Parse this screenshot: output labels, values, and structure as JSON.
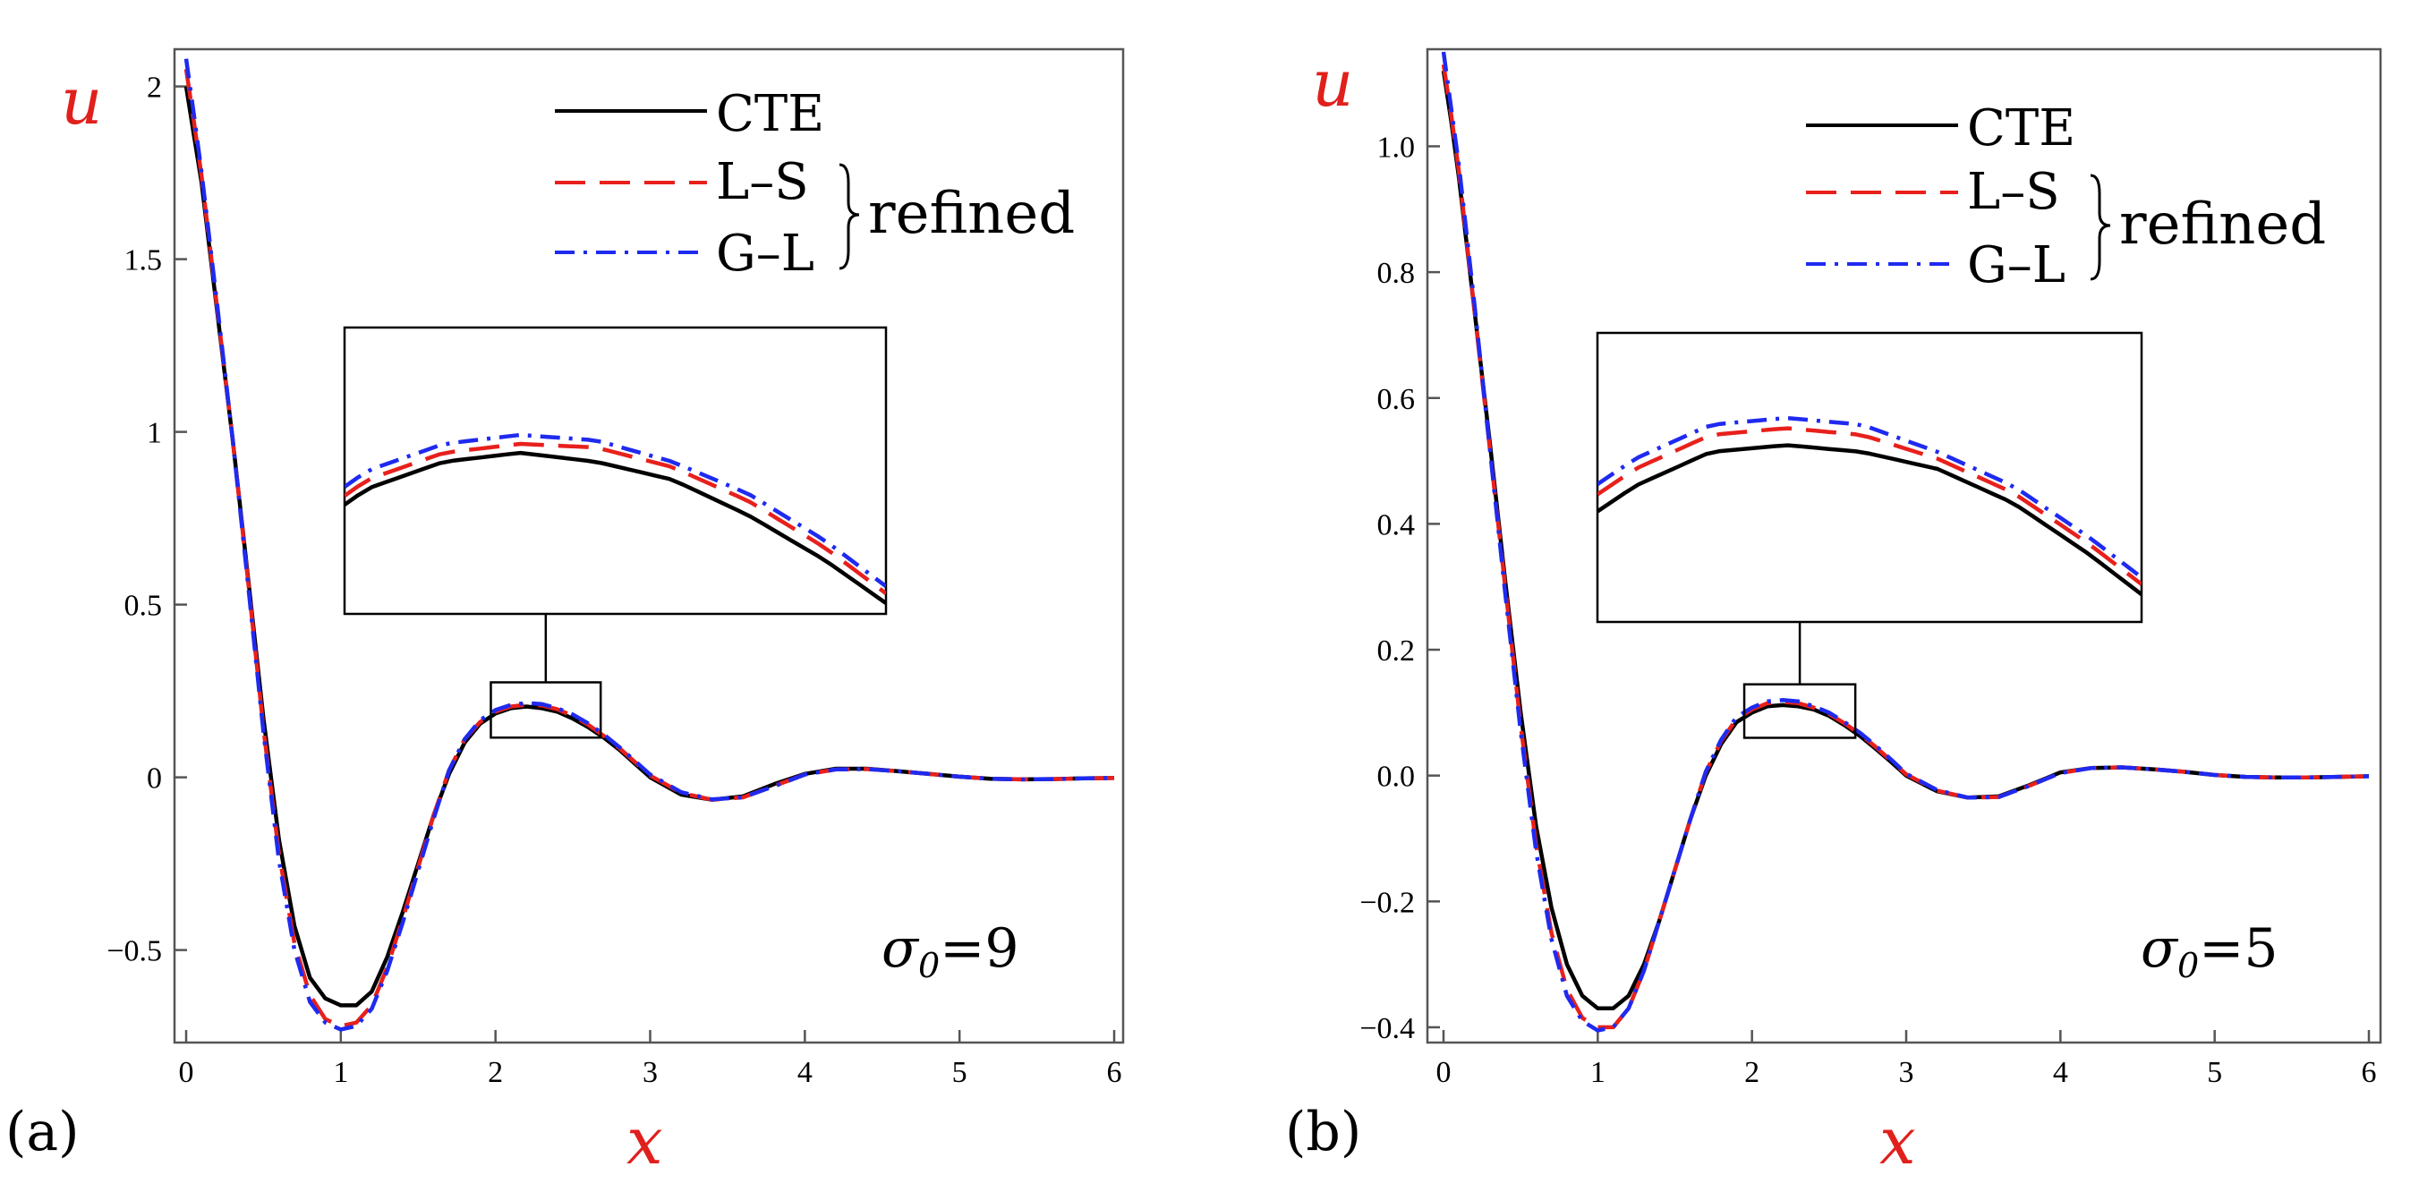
{
  "colors": {
    "cte": "#000000",
    "ls": "#e8201c",
    "gl": "#1f2af0",
    "axis_var": "#e0201c"
  },
  "chart_data": [
    {
      "type": "line",
      "panel_label": "(a)",
      "xlabel": "x",
      "ylabel": "u",
      "xlim": [
        0,
        6
      ],
      "ylim": [
        -0.76,
        2.1
      ],
      "x_ticks": [
        0,
        1,
        2,
        3,
        4,
        5,
        6
      ],
      "x_tick_labels": [
        "0",
        "1",
        "2",
        "3",
        "4",
        "5",
        "6"
      ],
      "y_ticks": [
        2,
        1.5,
        1,
        0.5,
        0,
        -0.5
      ],
      "y_tick_labels": [
        "2",
        "1.5",
        "1",
        "0.5",
        "0",
        "−0.5"
      ],
      "annotation": {
        "symbol": "σ",
        "sub": "0",
        "value": "=9"
      },
      "legend": {
        "cte": "CTE",
        "ls": "L–S",
        "gl": "G–L",
        "group": "refined"
      },
      "x": [
        0,
        0.05,
        0.1,
        0.2,
        0.3,
        0.4,
        0.5,
        0.6,
        0.7,
        0.8,
        0.9,
        1.0,
        1.1,
        1.2,
        1.3,
        1.4,
        1.5,
        1.6,
        1.7,
        1.8,
        1.9,
        2.0,
        2.1,
        2.2,
        2.3,
        2.4,
        2.5,
        2.6,
        2.7,
        2.8,
        2.9,
        3.0,
        3.2,
        3.4,
        3.6,
        3.8,
        4.0,
        4.2,
        4.4,
        4.6,
        4.8,
        5.0,
        5.2,
        5.4,
        5.6,
        5.8,
        6.0
      ],
      "series": [
        {
          "name": "CTE",
          "values": [
            2.0,
            1.86,
            1.72,
            1.35,
            0.98,
            0.58,
            0.17,
            -0.18,
            -0.43,
            -0.58,
            -0.64,
            -0.66,
            -0.66,
            -0.62,
            -0.52,
            -0.39,
            -0.25,
            -0.11,
            0.01,
            0.1,
            0.155,
            0.185,
            0.2,
            0.205,
            0.2,
            0.19,
            0.17,
            0.145,
            0.115,
            0.08,
            0.04,
            0.0,
            -0.05,
            -0.065,
            -0.055,
            -0.02,
            0.01,
            0.025,
            0.025,
            0.018,
            0.01,
            0.002,
            -0.004,
            -0.006,
            -0.005,
            -0.003,
            -0.002
          ]
        },
        {
          "name": "L–S",
          "values": [
            2.05,
            1.9,
            1.74,
            1.36,
            0.98,
            0.57,
            0.14,
            -0.22,
            -0.48,
            -0.63,
            -0.7,
            -0.72,
            -0.71,
            -0.66,
            -0.55,
            -0.41,
            -0.26,
            -0.11,
            0.02,
            0.11,
            0.16,
            0.19,
            0.205,
            0.21,
            0.208,
            0.197,
            0.178,
            0.152,
            0.12,
            0.085,
            0.045,
            0.005,
            -0.045,
            -0.065,
            -0.058,
            -0.025,
            0.008,
            0.023,
            0.024,
            0.018,
            0.01,
            0.002,
            -0.004,
            -0.006,
            -0.005,
            -0.003,
            -0.002
          ]
        },
        {
          "name": "G–L",
          "values": [
            2.08,
            1.92,
            1.75,
            1.37,
            0.98,
            0.56,
            0.13,
            -0.24,
            -0.5,
            -0.65,
            -0.71,
            -0.73,
            -0.72,
            -0.67,
            -0.56,
            -0.42,
            -0.27,
            -0.12,
            0.02,
            0.11,
            0.165,
            0.195,
            0.21,
            0.215,
            0.212,
            0.2,
            0.182,
            0.156,
            0.124,
            0.088,
            0.048,
            0.008,
            -0.043,
            -0.064,
            -0.058,
            -0.026,
            0.008,
            0.023,
            0.024,
            0.018,
            0.01,
            0.002,
            -0.004,
            -0.006,
            -0.005,
            -0.003,
            -0.002
          ]
        }
      ],
      "zoom_region": {
        "xlim": [
          1.97,
          2.68
        ],
        "ylim": [
          0.115,
          0.275
        ]
      }
    },
    {
      "type": "line",
      "panel_label": "(b)",
      "xlabel": "x",
      "ylabel": "u",
      "xlim": [
        0,
        6
      ],
      "ylim": [
        -0.42,
        1.15
      ],
      "x_ticks": [
        0,
        1,
        2,
        3,
        4,
        5,
        6
      ],
      "x_tick_labels": [
        "0",
        "1",
        "2",
        "3",
        "4",
        "5",
        "6"
      ],
      "y_ticks": [
        1.0,
        0.8,
        0.6,
        0.4,
        0.2,
        0.0,
        -0.2,
        -0.4
      ],
      "y_tick_labels": [
        "1.0",
        "0.8",
        "0.6",
        "0.4",
        "0.2",
        "0.0",
        "−0.2",
        "−0.4"
      ],
      "annotation": {
        "symbol": "σ",
        "sub": "0",
        "value": "=5"
      },
      "legend": {
        "cte": "CTE",
        "ls": "L–S",
        "gl": "G–L",
        "group": "refined"
      },
      "x": [
        0,
        0.05,
        0.1,
        0.2,
        0.3,
        0.4,
        0.5,
        0.6,
        0.7,
        0.8,
        0.9,
        1.0,
        1.1,
        1.2,
        1.3,
        1.4,
        1.5,
        1.6,
        1.7,
        1.8,
        1.9,
        2.0,
        2.1,
        2.2,
        2.3,
        2.4,
        2.5,
        2.6,
        2.7,
        2.8,
        2.9,
        3.0,
        3.2,
        3.4,
        3.6,
        3.8,
        4.0,
        4.2,
        4.4,
        4.6,
        4.8,
        5.0,
        5.2,
        5.4,
        5.6,
        5.8,
        6.0
      ],
      "series": [
        {
          "name": "CTE",
          "values": [
            1.12,
            1.04,
            0.95,
            0.74,
            0.53,
            0.31,
            0.1,
            -0.08,
            -0.21,
            -0.3,
            -0.35,
            -0.37,
            -0.37,
            -0.35,
            -0.3,
            -0.23,
            -0.15,
            -0.07,
            0.0,
            0.05,
            0.085,
            0.1,
            0.11,
            0.112,
            0.11,
            0.105,
            0.095,
            0.08,
            0.063,
            0.043,
            0.022,
            0.0,
            -0.025,
            -0.035,
            -0.033,
            -0.015,
            0.005,
            0.012,
            0.013,
            0.01,
            0.006,
            0.001,
            -0.002,
            -0.003,
            -0.003,
            -0.002,
            -0.001
          ]
        },
        {
          "name": "L–S",
          "values": [
            1.13,
            1.05,
            0.96,
            0.74,
            0.52,
            0.3,
            0.08,
            -0.11,
            -0.25,
            -0.34,
            -0.385,
            -0.4,
            -0.4,
            -0.37,
            -0.31,
            -0.23,
            -0.15,
            -0.07,
            0.005,
            0.055,
            0.09,
            0.105,
            0.115,
            0.117,
            0.115,
            0.108,
            0.098,
            0.083,
            0.066,
            0.046,
            0.024,
            0.002,
            -0.024,
            -0.035,
            -0.034,
            -0.016,
            0.004,
            0.012,
            0.013,
            0.01,
            0.006,
            0.001,
            -0.002,
            -0.003,
            -0.003,
            -0.002,
            -0.001
          ]
        },
        {
          "name": "G–L",
          "values": [
            1.15,
            1.06,
            0.97,
            0.75,
            0.52,
            0.29,
            0.07,
            -0.12,
            -0.26,
            -0.35,
            -0.39,
            -0.405,
            -0.4,
            -0.37,
            -0.31,
            -0.23,
            -0.15,
            -0.07,
            0.006,
            0.057,
            0.093,
            0.108,
            0.118,
            0.12,
            0.118,
            0.11,
            0.1,
            0.085,
            0.068,
            0.048,
            0.026,
            0.003,
            -0.023,
            -0.035,
            -0.034,
            -0.016,
            0.004,
            0.012,
            0.013,
            0.01,
            0.006,
            0.001,
            -0.002,
            -0.003,
            -0.003,
            -0.002,
            -0.001
          ]
        }
      ],
      "zoom_region": {
        "xlim": [
          1.95,
          2.67
        ],
        "ylim": [
          0.06,
          0.145
        ]
      }
    }
  ]
}
